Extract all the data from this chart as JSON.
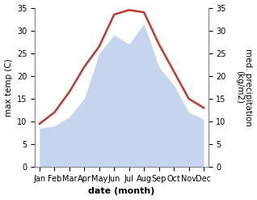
{
  "months": [
    "Jan",
    "Feb",
    "Mar",
    "Apr",
    "May",
    "Jun",
    "Jul",
    "Aug",
    "Sep",
    "Oct",
    "Nov",
    "Dec"
  ],
  "temperature": [
    9.5,
    12.0,
    16.5,
    22.0,
    26.5,
    33.5,
    34.5,
    34.0,
    27.0,
    21.0,
    15.0,
    13.0
  ],
  "precipitation": [
    8.5,
    9.0,
    11.0,
    15.0,
    25.0,
    29.0,
    27.0,
    31.5,
    22.0,
    18.0,
    12.0,
    10.5
  ],
  "temp_color": "#c0392b",
  "precip_fill_color": "#c5d5f0",
  "ylabel_left": "max temp (C)",
  "ylabel_right": "med. precipitation\n(kg/m2)",
  "xlabel": "date (month)",
  "ylim": [
    0,
    35
  ],
  "label_fontsize": 7.5,
  "tick_fontsize": 7,
  "spine_color": "#888888"
}
